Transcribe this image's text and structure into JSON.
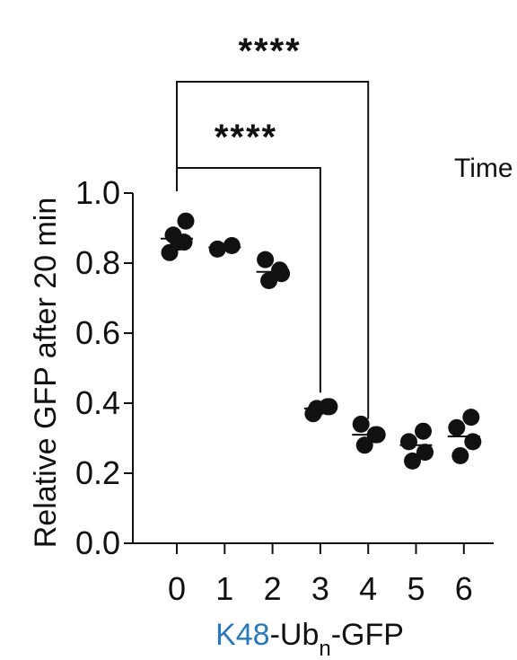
{
  "chart_data": {
    "type": "scatter",
    "ylabel": "Relative GFP after 20 min",
    "xlabel": {
      "prefix": "K48",
      "mid": "-Ub",
      "sub": "n",
      "suffix": "-GFP"
    },
    "categories": [
      "0",
      "1",
      "2",
      "3",
      "4",
      "5",
      "6"
    ],
    "yticks": [
      "0.0",
      "0.2",
      "0.4",
      "0.6",
      "0.8",
      "1.0"
    ],
    "ylim": [
      0,
      1.0
    ],
    "grid": false,
    "series": [
      {
        "x": "0",
        "values": [
          0.83,
          0.86,
          0.88,
          0.92,
          0.86
        ],
        "mean": 0.87
      },
      {
        "x": "1",
        "values": [
          0.84,
          0.85
        ],
        "mean": 0.845
      },
      {
        "x": "2",
        "values": [
          0.81,
          0.78,
          0.75,
          0.77
        ],
        "mean": 0.775
      },
      {
        "x": "3",
        "values": [
          0.37,
          0.39,
          0.385,
          0.39
        ],
        "mean": 0.385
      },
      {
        "x": "4",
        "values": [
          0.34,
          0.31,
          0.28,
          0.31
        ],
        "mean": 0.31
      },
      {
        "x": "5",
        "values": [
          0.29,
          0.32,
          0.235,
          0.26
        ],
        "mean": 0.28
      },
      {
        "x": "6",
        "values": [
          0.33,
          0.36,
          0.25,
          0.29
        ],
        "mean": 0.305
      }
    ],
    "significance": [
      {
        "from": "0",
        "to": "3",
        "label": "****"
      },
      {
        "from": "0",
        "to": "4",
        "label": "****"
      }
    ],
    "cut_text": "Time",
    "colors": {
      "marks": "#111111",
      "accent": "#2a78b8"
    }
  }
}
